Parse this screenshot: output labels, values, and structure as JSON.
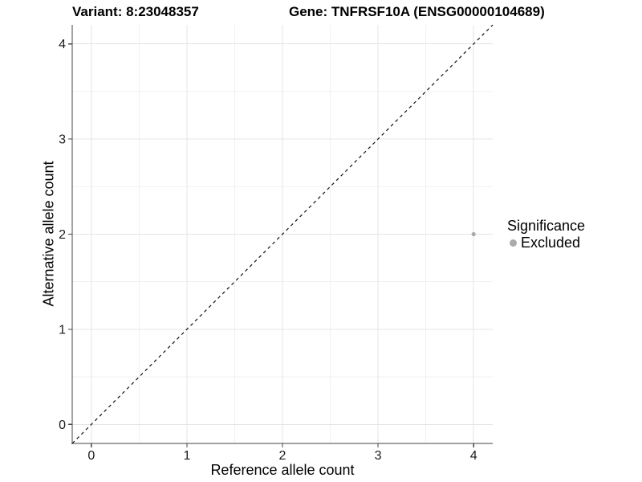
{
  "chart_data": {
    "type": "scatter",
    "titles": {
      "left": "Variant: 8:23048357",
      "right": "Gene: TNFRSF10A (ENSG00000104689)"
    },
    "xlabel": "Reference allele count",
    "ylabel": "Alternative allele count",
    "xlim": [
      -0.2,
      4.2
    ],
    "ylim": [
      -0.2,
      4.2
    ],
    "xticks": [
      0,
      1,
      2,
      3,
      4
    ],
    "yticks": [
      0,
      1,
      2,
      3,
      4
    ],
    "x_minor_ticks": [
      0.5,
      1.5,
      2.5,
      3.5
    ],
    "y_minor_ticks": [
      0.5,
      1.5,
      2.5,
      3.5
    ],
    "grid": true,
    "reference_line": {
      "type": "identity y=x",
      "style": "dashed",
      "color": "#111111"
    },
    "series": [
      {
        "name": "Excluded",
        "color": "#ababab",
        "points": [
          {
            "x": 4,
            "y": 2
          }
        ]
      }
    ],
    "legend": {
      "title": "Significance",
      "position": "right",
      "entries": [
        {
          "label": "Excluded",
          "color": "#ababab",
          "marker": "dot"
        }
      ]
    }
  },
  "colors": {
    "background": "#ffffff",
    "grid_major": "#e4e4e4",
    "grid_minor": "#f1f1f1",
    "axis": "#454545",
    "tick_label": "#1a1a1a",
    "text": "#000000"
  }
}
